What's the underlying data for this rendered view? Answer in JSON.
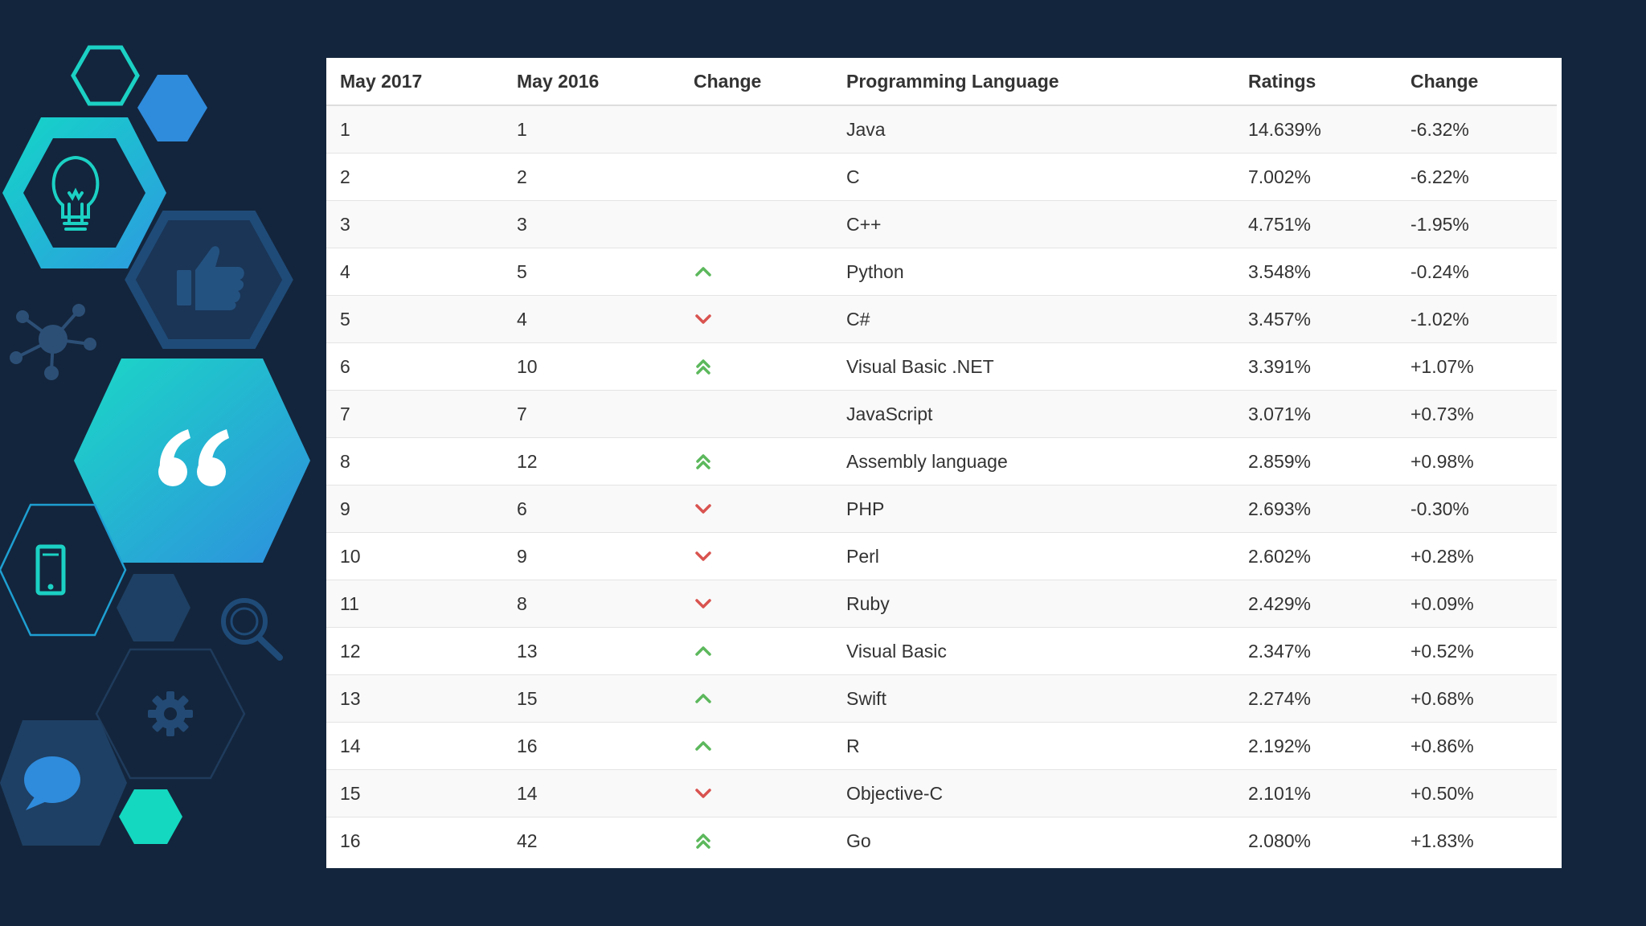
{
  "table": {
    "headers": [
      "May 2017",
      "May 2016",
      "Change",
      "Programming Language",
      "Ratings",
      "Change"
    ],
    "rows": [
      {
        "rank2017": "1",
        "rank2016": "1",
        "trend": "none",
        "language": "Java",
        "rating": "14.639%",
        "change": "-6.32%"
      },
      {
        "rank2017": "2",
        "rank2016": "2",
        "trend": "none",
        "language": "C",
        "rating": "7.002%",
        "change": "-6.22%"
      },
      {
        "rank2017": "3",
        "rank2016": "3",
        "trend": "none",
        "language": "C++",
        "rating": "4.751%",
        "change": "-1.95%"
      },
      {
        "rank2017": "4",
        "rank2016": "5",
        "trend": "up",
        "language": "Python",
        "rating": "3.548%",
        "change": "-0.24%"
      },
      {
        "rank2017": "5",
        "rank2016": "4",
        "trend": "down",
        "language": "C#",
        "rating": "3.457%",
        "change": "-1.02%"
      },
      {
        "rank2017": "6",
        "rank2016": "10",
        "trend": "double-up",
        "language": "Visual Basic .NET",
        "rating": "3.391%",
        "change": "+1.07%"
      },
      {
        "rank2017": "7",
        "rank2016": "7",
        "trend": "none",
        "language": "JavaScript",
        "rating": "3.071%",
        "change": "+0.73%"
      },
      {
        "rank2017": "8",
        "rank2016": "12",
        "trend": "double-up",
        "language": "Assembly language",
        "rating": "2.859%",
        "change": "+0.98%"
      },
      {
        "rank2017": "9",
        "rank2016": "6",
        "trend": "down",
        "language": "PHP",
        "rating": "2.693%",
        "change": "-0.30%"
      },
      {
        "rank2017": "10",
        "rank2016": "9",
        "trend": "down",
        "language": "Perl",
        "rating": "2.602%",
        "change": "+0.28%"
      },
      {
        "rank2017": "11",
        "rank2016": "8",
        "trend": "down",
        "language": "Ruby",
        "rating": "2.429%",
        "change": "+0.09%"
      },
      {
        "rank2017": "12",
        "rank2016": "13",
        "trend": "up",
        "language": "Visual Basic",
        "rating": "2.347%",
        "change": "+0.52%"
      },
      {
        "rank2017": "13",
        "rank2016": "15",
        "trend": "up",
        "language": "Swift",
        "rating": "2.274%",
        "change": "+0.68%"
      },
      {
        "rank2017": "14",
        "rank2016": "16",
        "trend": "up",
        "language": "R",
        "rating": "2.192%",
        "change": "+0.86%"
      },
      {
        "rank2017": "15",
        "rank2016": "14",
        "trend": "down",
        "language": "Objective-C",
        "rating": "2.101%",
        "change": "+0.50%"
      },
      {
        "rank2017": "16",
        "rank2016": "42",
        "trend": "double-up",
        "language": "Go",
        "rating": "2.080%",
        "change": "+1.83%"
      }
    ]
  },
  "colors": {
    "background": "#13253c",
    "up_arrow": "#5cb85c",
    "down_arrow": "#d9534f",
    "accent_teal": "#1bd1c4",
    "accent_blue": "#2f8bdc"
  },
  "decor_icons": [
    "lightbulb-icon",
    "thumbs-up-icon",
    "network-icon",
    "quote-icon",
    "smartphone-icon",
    "magnifier-icon",
    "gear-icon",
    "chat-bubble-icon"
  ]
}
